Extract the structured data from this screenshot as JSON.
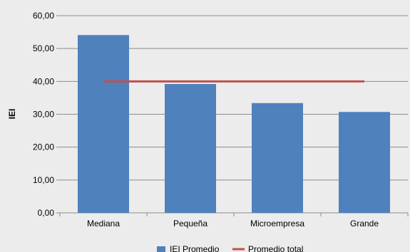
{
  "chart_data": {
    "type": "bar",
    "categories": [
      "Mediana",
      "Pequeña",
      "Microempresa",
      "Grande"
    ],
    "series": [
      {
        "name": "IEI Promedio",
        "type": "bar",
        "values": [
          54.1,
          39.2,
          33.4,
          30.7
        ],
        "color": "#4f81bd"
      },
      {
        "name": "Promedio total",
        "type": "line",
        "values": [
          40.0,
          40.0,
          40.0,
          40.0
        ],
        "color": "#c0504d"
      }
    ],
    "yticks": [
      "0,00",
      "10,00",
      "20,00",
      "30,00",
      "40,00",
      "50,00",
      "60,00"
    ],
    "ylabel": "IEI",
    "ylim": [
      0,
      60
    ],
    "grid": true,
    "legend": "bottom-center"
  }
}
